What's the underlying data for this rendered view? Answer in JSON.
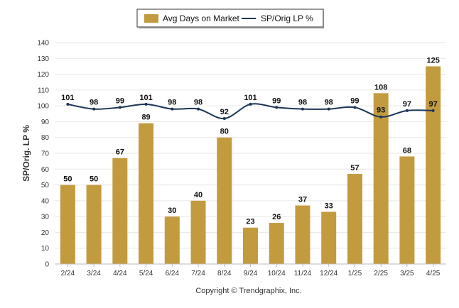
{
  "chart_data": {
    "type": "bar",
    "categories": [
      "2/24",
      "3/24",
      "4/24",
      "5/24",
      "6/24",
      "7/24",
      "8/24",
      "9/24",
      "10/24",
      "11/24",
      "12/24",
      "1/25",
      "2/25",
      "3/25",
      "4/25"
    ],
    "series": [
      {
        "name": "Avg Days on Market",
        "type": "bar",
        "color": "#C39B3F",
        "values": [
          50,
          50,
          67,
          89,
          30,
          40,
          80,
          23,
          26,
          37,
          33,
          57,
          108,
          68,
          125
        ]
      },
      {
        "name": "SP/Orig LP %",
        "type": "line",
        "color": "#1C3557",
        "values": [
          101,
          98,
          99,
          101,
          98,
          98,
          92,
          101,
          99,
          98,
          98,
          99,
          93,
          97,
          97
        ]
      }
    ],
    "ylabel": "SP/Orig. LP %",
    "ylim": [
      0,
      140
    ],
    "yticks": [
      0,
      10,
      20,
      30,
      40,
      50,
      60,
      70,
      80,
      90,
      100,
      110,
      120,
      130,
      140
    ],
    "grid": true,
    "legend_position": "top-center"
  },
  "footer": {
    "credit": "Copyright © Trendgraphix, Inc."
  }
}
